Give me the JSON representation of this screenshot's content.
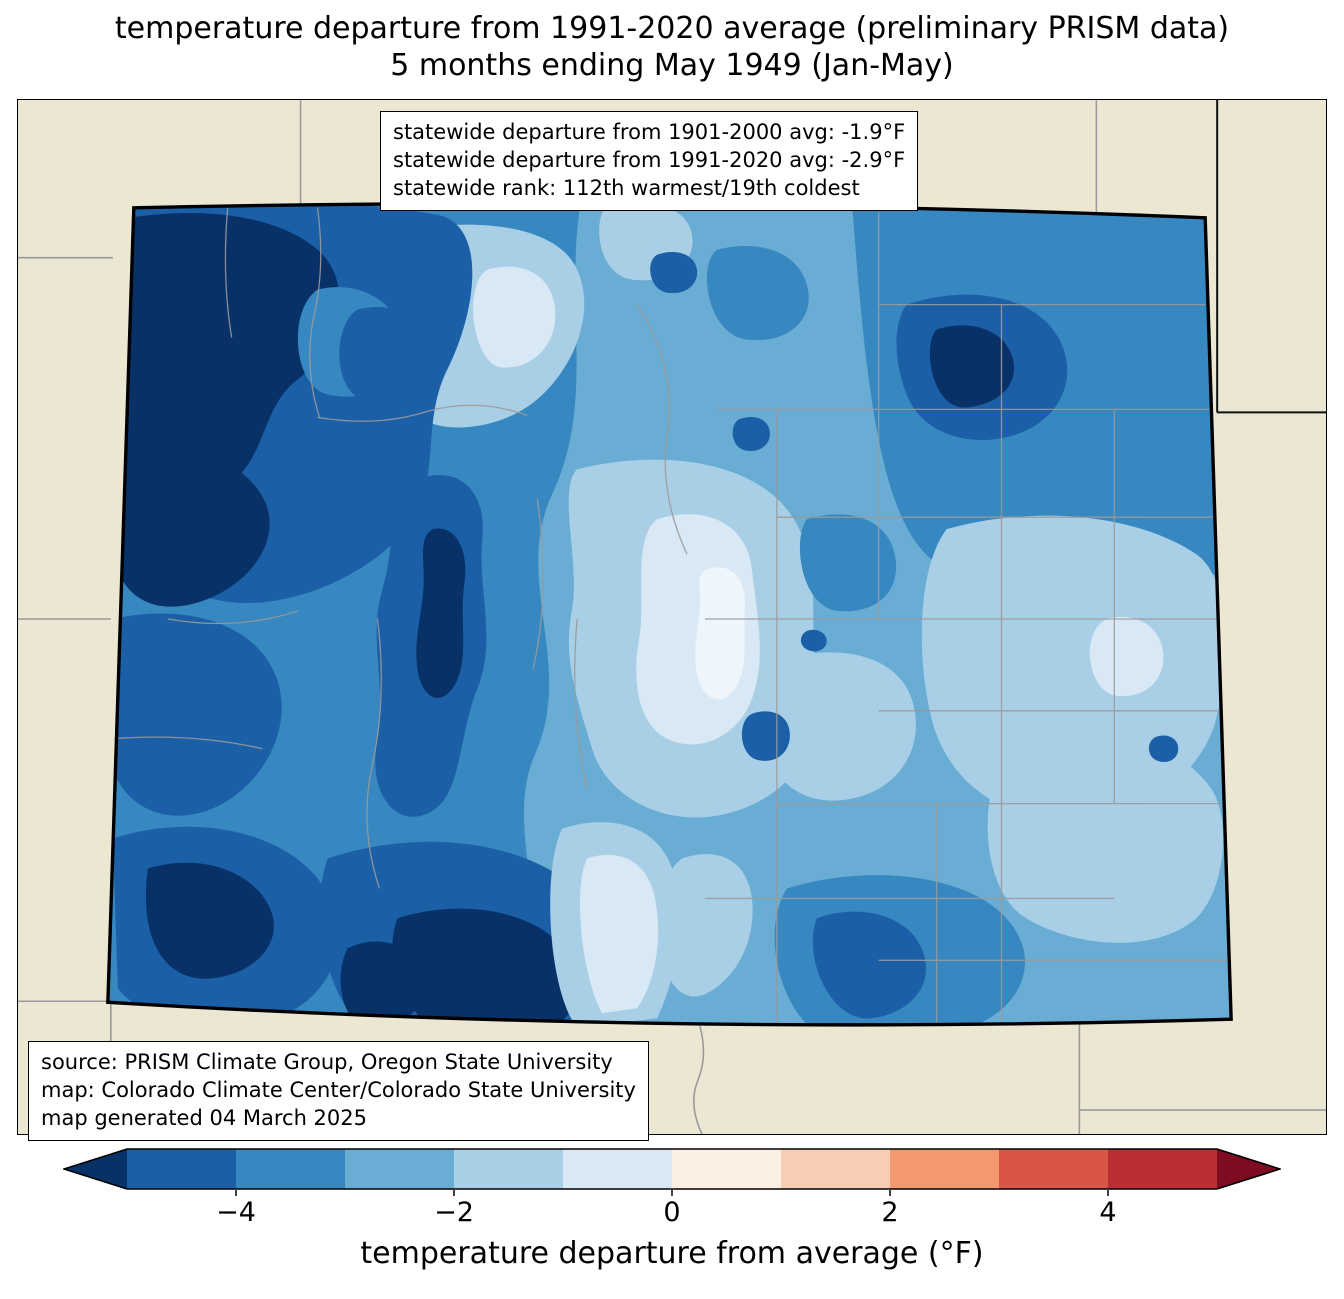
{
  "title": {
    "line1": "temperature departure from 1991-2020 average (preliminary PRISM data)",
    "line2": "5 months ending May 1949 (Jan-May)"
  },
  "stats_box": {
    "lines": [
      "statewide departure from 1901-2000 avg: -1.9°F",
      "statewide departure from 1991-2020 avg: -2.9°F",
      "statewide rank: 112th warmest/19th coldest"
    ]
  },
  "source_box": {
    "lines": [
      "source: PRISM Climate Group, Oregon State University",
      "map: Colorado Climate Center/Colorado State University",
      "map generated 04 March 2025"
    ]
  },
  "colorbar": {
    "label": "temperature departure from average (°F)",
    "range": [
      -5,
      5
    ],
    "under_color": "#083168",
    "over_color": "#7d0b21",
    "segments": [
      {
        "from": -5,
        "to": -4,
        "color": "#1b5fa6"
      },
      {
        "from": -4,
        "to": -3,
        "color": "#3787c0"
      },
      {
        "from": -3,
        "to": -2,
        "color": "#69add5"
      },
      {
        "from": -2,
        "to": -1,
        "color": "#a9cfe6"
      },
      {
        "from": -1,
        "to": 0,
        "color": "#d9e8f5"
      },
      {
        "from": 0,
        "to": 1,
        "color": "#fcefe3"
      },
      {
        "from": 1,
        "to": 2,
        "color": "#f9cdb3"
      },
      {
        "from": 2,
        "to": 3,
        "color": "#f2996f"
      },
      {
        "from": 3,
        "to": 4,
        "color": "#d95646"
      },
      {
        "from": 4,
        "to": 5,
        "color": "#bc2e34"
      }
    ],
    "ticks": [
      {
        "value": -4,
        "label": "−4"
      },
      {
        "value": -2,
        "label": "−2"
      },
      {
        "value": 0,
        "label": "0"
      },
      {
        "value": 2,
        "label": "2"
      },
      {
        "value": 4,
        "label": "4"
      }
    ]
  },
  "map": {
    "region": "Colorado",
    "background_color": "#ece7d3",
    "border_color": "#000000",
    "county_line_color": "#9a9a9a"
  },
  "chart_data": {
    "type": "heatmap",
    "title": "temperature departure from 1991-2020 average (preliminary PRISM data)",
    "subtitle": "5 months ending May 1949 (Jan-May)",
    "colorbar_label": "temperature departure from average (°F)",
    "colorbar_ticks": [
      -4,
      -2,
      0,
      2,
      4
    ],
    "colorbar_range": [
      -5,
      5
    ],
    "statewide_departure_from_1901_2000_avg_F": -1.9,
    "statewide_departure_from_1991_2020_avg_F": -2.9,
    "statewide_rank": "112th warmest/19th coldest"
  }
}
